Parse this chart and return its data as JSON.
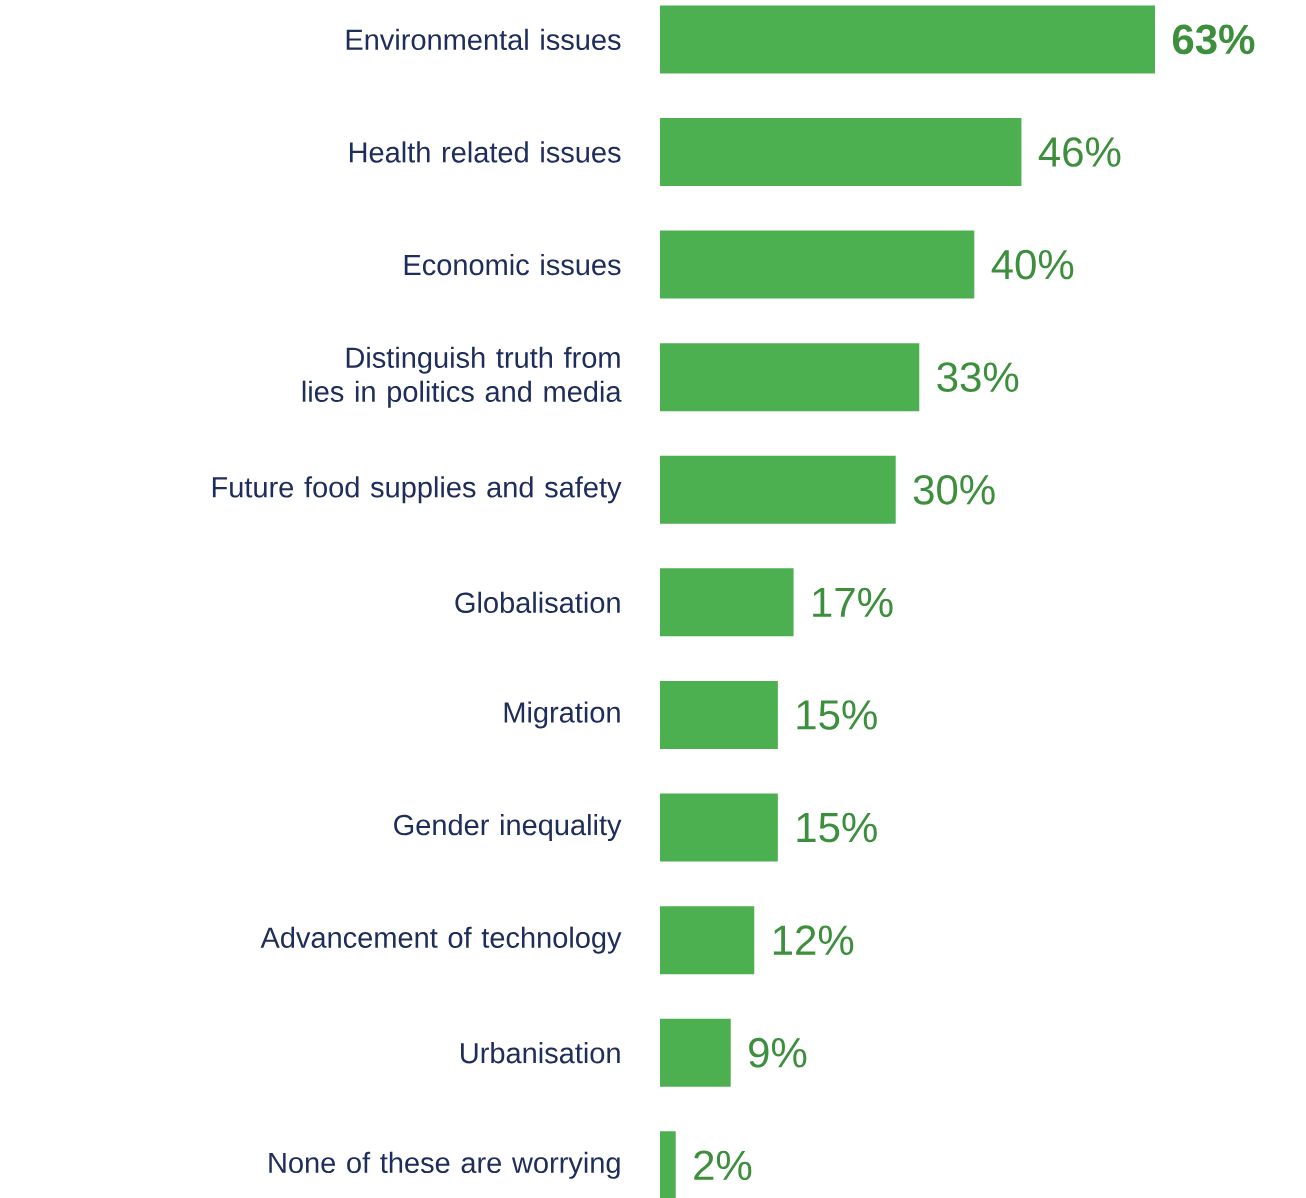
{
  "chart_data": {
    "type": "bar",
    "orientation": "horizontal",
    "categories": [
      "Environmental issues",
      "Health related issues",
      "Economic issues",
      "Distinguish truth from lies in politics and media",
      "Future food supplies and safety",
      "Globalisation",
      "Migration",
      "Gender inequality",
      "Advancement of technology",
      "Urbanisation",
      "None of these are worrying"
    ],
    "values": [
      63,
      46,
      40,
      33,
      30,
      17,
      15,
      15,
      12,
      9,
      2
    ],
    "value_labels": [
      "**63%**",
      "46%",
      "40%",
      "33%",
      "30%",
      "17%",
      "15%",
      "15%",
      "12%",
      "9%",
      "2%"
    ],
    "color": "#4caf50"
  }
}
